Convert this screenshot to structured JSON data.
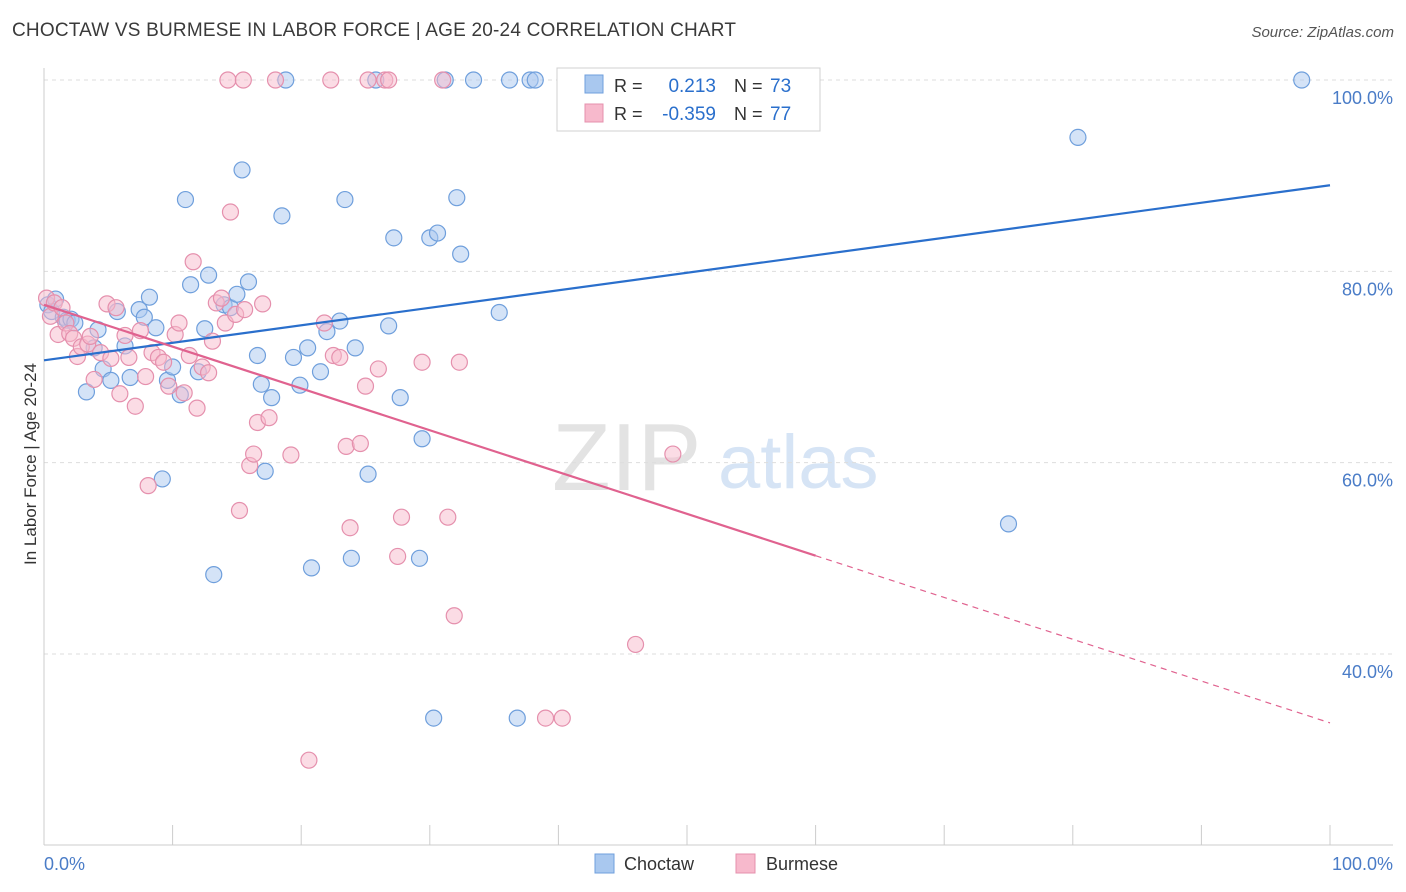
{
  "title": "CHOCTAW VS BURMESE IN LABOR FORCE | AGE 20-24 CORRELATION CHART",
  "source": "Source: ZipAtlas.com",
  "colors": {
    "choctaw_fill": "#a9c8ef",
    "choctaw_stroke": "#6f9fdc",
    "choctaw_line": "#2a6fcc",
    "burmese_fill": "#f7b9cc",
    "burmese_stroke": "#e590ad",
    "burmese_line": "#e0628f",
    "tick_label": "#4a7cc7",
    "grid": "#dddddd"
  },
  "legend": {
    "rows": [
      {
        "r_label": "R =",
        "r_value": "0.213",
        "n_label": "N =",
        "n_value": "73"
      },
      {
        "r_label": "R =",
        "r_value": "-0.359",
        "n_label": "N =",
        "n_value": "77"
      }
    ]
  },
  "bottom_legend": [
    "Choctaw",
    "Burmese"
  ],
  "watermark": {
    "zip": "ZIP",
    "atlas": "atlas"
  },
  "chart_data": {
    "type": "scatter",
    "title": "CHOCTAW VS BURMESE IN LABOR FORCE | AGE 20-24 CORRELATION CHART",
    "xlabel": "",
    "ylabel": "In Labor Force | Age 20-24",
    "xlim": [
      0,
      100
    ],
    "ylim": [
      20,
      103
    ],
    "x_tick_labels": [
      "0.0%",
      "100.0%"
    ],
    "y_ticks": [
      40,
      60,
      80,
      100
    ],
    "y_tick_labels": [
      "40.0%",
      "60.0%",
      "80.0%",
      "100.0%"
    ],
    "grid": true,
    "legend_position": "top-center",
    "series": [
      {
        "name": "Choctaw",
        "color": "#a9c8ef",
        "r": 0.213,
        "n": 73,
        "trend": {
          "x": [
            0,
            100
          ],
          "y": [
            70.7,
            89.0
          ],
          "style": "solid"
        },
        "points": [
          [
            0.3,
            76.5
          ],
          [
            0.6,
            75.8
          ],
          [
            0.9,
            77.1
          ],
          [
            1.5,
            75.2
          ],
          [
            1.8,
            74.9
          ],
          [
            2.1,
            75.0
          ],
          [
            2.4,
            74.6
          ],
          [
            3.3,
            67.4
          ],
          [
            3.9,
            72.0
          ],
          [
            4.2,
            73.9
          ],
          [
            4.6,
            69.8
          ],
          [
            5.2,
            68.6
          ],
          [
            5.7,
            75.8
          ],
          [
            6.3,
            72.2
          ],
          [
            6.7,
            68.9
          ],
          [
            7.4,
            76.0
          ],
          [
            7.8,
            75.2
          ],
          [
            8.2,
            77.3
          ],
          [
            8.7,
            74.1
          ],
          [
            9.2,
            58.3
          ],
          [
            9.6,
            68.6
          ],
          [
            10.0,
            70.0
          ],
          [
            10.6,
            67.1
          ],
          [
            11.0,
            87.5
          ],
          [
            11.4,
            78.6
          ],
          [
            12.0,
            69.5
          ],
          [
            12.5,
            74.0
          ],
          [
            12.8,
            79.6
          ],
          [
            13.2,
            48.3
          ],
          [
            14.0,
            76.5
          ],
          [
            14.5,
            76.2
          ],
          [
            15.0,
            77.6
          ],
          [
            15.4,
            90.6
          ],
          [
            15.9,
            78.9
          ],
          [
            16.6,
            71.2
          ],
          [
            16.9,
            68.2
          ],
          [
            17.2,
            59.1
          ],
          [
            17.7,
            66.8
          ],
          [
            18.5,
            85.8
          ],
          [
            18.8,
            100.0
          ],
          [
            19.4,
            71.0
          ],
          [
            19.9,
            68.1
          ],
          [
            20.5,
            72.0
          ],
          [
            20.8,
            49.0
          ],
          [
            21.5,
            69.5
          ],
          [
            22.0,
            73.7
          ],
          [
            23.0,
            74.8
          ],
          [
            23.4,
            87.5
          ],
          [
            23.9,
            50.0
          ],
          [
            25.2,
            58.8
          ],
          [
            26.8,
            74.3
          ],
          [
            27.2,
            83.5
          ],
          [
            27.7,
            66.8
          ],
          [
            29.2,
            50.0
          ],
          [
            29.4,
            62.5
          ],
          [
            30.0,
            83.5
          ],
          [
            30.3,
            33.3
          ],
          [
            30.6,
            84.0
          ],
          [
            31.2,
            100.0
          ],
          [
            32.1,
            87.7
          ],
          [
            32.4,
            81.8
          ],
          [
            33.4,
            100.0
          ],
          [
            35.4,
            75.7
          ],
          [
            36.2,
            100.0
          ],
          [
            36.8,
            33.3
          ],
          [
            37.8,
            100.0
          ],
          [
            38.2,
            100.0
          ],
          [
            42.0,
            100.0
          ],
          [
            75.0,
            53.6
          ],
          [
            80.4,
            94.0
          ],
          [
            97.8,
            100.0
          ],
          [
            25.8,
            100.0
          ],
          [
            24.2,
            72.0
          ]
        ]
      },
      {
        "name": "Burmese",
        "color": "#f7b9cc",
        "r": -0.359,
        "n": 77,
        "trend": {
          "x": [
            0,
            100
          ],
          "y": [
            76.5,
            32.8
          ],
          "style": "solid-to-dashed",
          "solid_until_x": 60
        },
        "points": [
          [
            0.2,
            77.2
          ],
          [
            0.5,
            75.3
          ],
          [
            0.8,
            76.7
          ],
          [
            1.1,
            73.4
          ],
          [
            1.4,
            76.2
          ],
          [
            1.7,
            74.6
          ],
          [
            2.0,
            73.5
          ],
          [
            2.3,
            73.0
          ],
          [
            2.6,
            71.1
          ],
          [
            2.9,
            72.1
          ],
          [
            3.4,
            72.4
          ],
          [
            3.6,
            73.2
          ],
          [
            3.9,
            68.7
          ],
          [
            4.4,
            71.5
          ],
          [
            4.9,
            76.6
          ],
          [
            5.2,
            70.9
          ],
          [
            5.6,
            76.2
          ],
          [
            5.9,
            67.2
          ],
          [
            6.3,
            73.3
          ],
          [
            6.6,
            71.0
          ],
          [
            7.1,
            65.9
          ],
          [
            7.5,
            73.8
          ],
          [
            7.9,
            69.0
          ],
          [
            8.1,
            57.6
          ],
          [
            8.4,
            71.5
          ],
          [
            8.9,
            71.0
          ],
          [
            9.3,
            70.5
          ],
          [
            9.7,
            68.0
          ],
          [
            10.2,
            73.4
          ],
          [
            10.5,
            74.6
          ],
          [
            10.9,
            67.3
          ],
          [
            11.3,
            71.2
          ],
          [
            11.6,
            81.0
          ],
          [
            11.9,
            65.7
          ],
          [
            12.3,
            70.0
          ],
          [
            12.8,
            69.4
          ],
          [
            13.1,
            72.7
          ],
          [
            13.4,
            76.7
          ],
          [
            13.8,
            77.2
          ],
          [
            14.1,
            74.6
          ],
          [
            14.5,
            86.2
          ],
          [
            14.9,
            75.5
          ],
          [
            15.2,
            55.0
          ],
          [
            15.6,
            76.0
          ],
          [
            16.0,
            59.7
          ],
          [
            16.3,
            60.9
          ],
          [
            16.6,
            64.2
          ],
          [
            17.0,
            76.6
          ],
          [
            17.5,
            64.7
          ],
          [
            18.0,
            100.0
          ],
          [
            19.2,
            60.8
          ],
          [
            20.6,
            28.9
          ],
          [
            21.8,
            74.6
          ],
          [
            22.5,
            71.2
          ],
          [
            23.0,
            71.0
          ],
          [
            23.5,
            61.7
          ],
          [
            23.8,
            53.2
          ],
          [
            24.6,
            62.0
          ],
          [
            25.0,
            68.0
          ],
          [
            25.2,
            100.0
          ],
          [
            26.0,
            69.8
          ],
          [
            27.5,
            50.2
          ],
          [
            27.8,
            54.3
          ],
          [
            29.4,
            70.5
          ],
          [
            31.0,
            100.0
          ],
          [
            31.4,
            54.3
          ],
          [
            31.9,
            44.0
          ],
          [
            32.3,
            70.5
          ],
          [
            39.0,
            33.3
          ],
          [
            40.3,
            33.3
          ],
          [
            46.0,
            41.0
          ],
          [
            48.9,
            60.9
          ],
          [
            14.3,
            100.0
          ],
          [
            15.5,
            100.0
          ],
          [
            22.3,
            100.0
          ],
          [
            26.5,
            100.0
          ],
          [
            26.8,
            100.0
          ]
        ]
      }
    ]
  }
}
